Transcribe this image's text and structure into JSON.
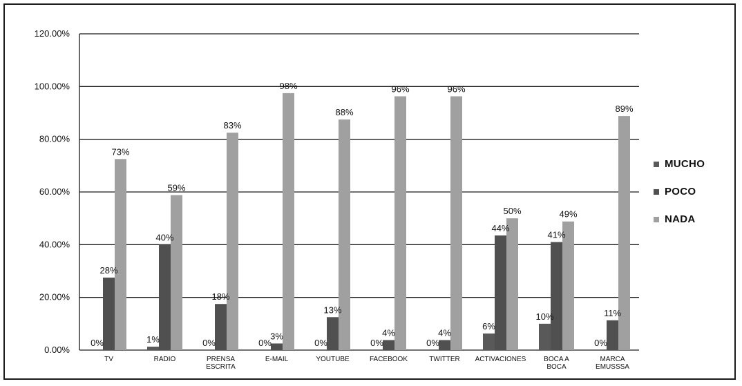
{
  "chart_data": {
    "type": "bar",
    "title": "",
    "xlabel": "",
    "ylabel": "",
    "ylim": [
      0,
      1.2
    ],
    "yticks": [
      "0.00%",
      "20.00%",
      "40.00%",
      "60.00%",
      "80.00%",
      "100.00%",
      "120.00%"
    ],
    "grid": true,
    "legend_position": "right",
    "categories": [
      [
        "TV"
      ],
      [
        "RADIO"
      ],
      [
        "PRENSA",
        "ESCRITA"
      ],
      [
        "E-MAIL"
      ],
      [
        "YOUTUBE"
      ],
      [
        "FACEBOOK"
      ],
      [
        "TWITTER"
      ],
      [
        "ACTIVACIONES"
      ],
      [
        "BOCA A",
        "BOCA"
      ],
      [
        "MARCA",
        "EMUSSSA"
      ]
    ],
    "series": [
      {
        "name": "MUCHO",
        "color": "#595959",
        "values": [
          0,
          0.013,
          0,
          0,
          0,
          0,
          0,
          0.063,
          0.1,
          0
        ],
        "labels": [
          "0%",
          "1%",
          "0%",
          "0%",
          "0%",
          "0%",
          "0%",
          "6%",
          "10%",
          "0%"
        ]
      },
      {
        "name": "POCO",
        "color": "#505050",
        "values": [
          0.275,
          0.4,
          0.175,
          0.025,
          0.125,
          0.038,
          0.038,
          0.435,
          0.41,
          0.113
        ],
        "labels": [
          "28%",
          "40%",
          "18%",
          "3%",
          "13%",
          "4%",
          "4%",
          "44%",
          "41%",
          "11%"
        ]
      },
      {
        "name": "NADA",
        "color": "#a0a0a0",
        "values": [
          0.725,
          0.588,
          0.825,
          0.975,
          0.875,
          0.963,
          0.963,
          0.5,
          0.488,
          0.888
        ],
        "labels": [
          "73%",
          "59%",
          "83%",
          "98%",
          "88%",
          "96%",
          "96%",
          "50%",
          "49%",
          "89%"
        ]
      }
    ]
  },
  "colors": {
    "grid": "#1a1a1a",
    "axis": "#1a1a1a",
    "text": "#111111"
  }
}
